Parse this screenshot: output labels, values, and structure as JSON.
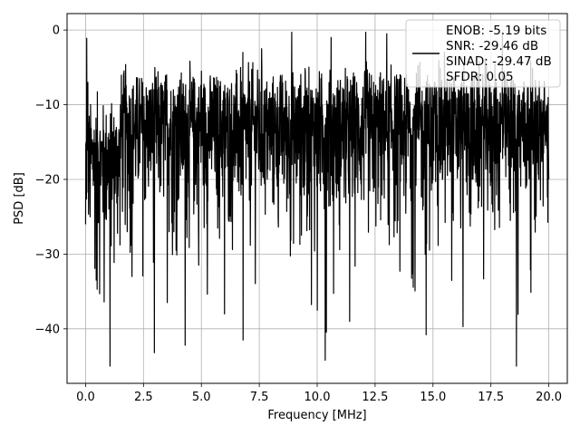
{
  "chart_data": {
    "type": "line",
    "title": "",
    "xlabel": "Frequency [MHz]",
    "ylabel": "PSD [dB]",
    "xlim": [
      -0.8,
      20.8
    ],
    "ylim": [
      -47.3,
      2.2
    ],
    "xticks": [
      0.0,
      2.5,
      5.0,
      7.5,
      10.0,
      12.5,
      15.0,
      17.5,
      20.0
    ],
    "xtick_labels": [
      "0.0",
      "2.5",
      "5.0",
      "7.5",
      "10.0",
      "12.5",
      "15.0",
      "17.5",
      "20.0"
    ],
    "yticks": [
      0,
      -10,
      -20,
      -30,
      -40
    ],
    "ytick_labels": [
      "0",
      "−10",
      "−20",
      "−30",
      "−40"
    ],
    "grid": true,
    "legend_position": "top-right",
    "legend_lines": [
      "ENOB: -5.19 bits",
      "SNR: -29.46 dB",
      "SINAD: -29.47 dB",
      "SFDR: 0.05"
    ],
    "series": [
      {
        "name": "ENOB: -5.19 bits",
        "color": "#000000",
        "x_range": [
          0,
          20
        ],
        "points": 2048,
        "sample_points": [
          [
            0.0,
            -26.0
          ],
          [
            0.05,
            -1.1
          ],
          [
            0.1,
            -7.0
          ],
          [
            0.2,
            -25.0
          ],
          [
            0.5,
            -34.7
          ],
          [
            0.8,
            -36.4
          ],
          [
            1.06,
            -45.0
          ],
          [
            1.5,
            -10.0
          ],
          [
            2.0,
            -33.0
          ],
          [
            2.97,
            -43.2
          ],
          [
            3.5,
            -6.0
          ],
          [
            4.3,
            -42.2
          ],
          [
            5.0,
            -5.5
          ],
          [
            6.0,
            -38.0
          ],
          [
            6.8,
            -41.5
          ],
          [
            7.6,
            -2.5
          ],
          [
            8.9,
            -0.3
          ],
          [
            10.0,
            -37.5
          ],
          [
            10.35,
            -44.2
          ],
          [
            10.6,
            -1.0
          ],
          [
            11.4,
            -39.0
          ],
          [
            12.1,
            -0.3
          ],
          [
            13.0,
            -0.5
          ],
          [
            14.7,
            -40.8
          ],
          [
            15.5,
            -3.0
          ],
          [
            16.3,
            -39.7
          ],
          [
            18.0,
            -0.3
          ],
          [
            18.6,
            -45.0
          ],
          [
            20.0,
            -20.0
          ]
        ],
        "envelope": {
          "low_freq_band": [
            0.0,
            1.5
          ],
          "median_db_low": -18,
          "median_db_high": -14,
          "typical_max_db": -3,
          "typical_min_db": -28,
          "deep_null_db": -45
        }
      }
    ]
  }
}
